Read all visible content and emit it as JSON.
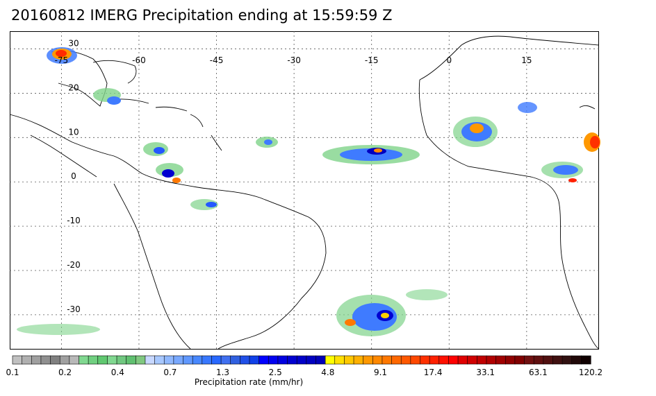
{
  "title": "20160812 IMERG Precipitation ending at 15:59:59 Z",
  "map": {
    "lon_labels": [
      "-75",
      "-60",
      "-45",
      "-30",
      "-15",
      "0",
      "15"
    ],
    "lon_values": [
      -75,
      -60,
      -45,
      -30,
      -15,
      0,
      15
    ],
    "lat_labels": [
      "30",
      "20",
      "10",
      "0",
      "-10",
      "-20",
      "-30"
    ],
    "lat_values": [
      30,
      20,
      10,
      0,
      -10,
      -20,
      -30
    ]
  },
  "colorbar": {
    "xlabel": "Precipitation rate (mm/hr)",
    "tick_labels": [
      "0.1",
      "0.2",
      "0.4",
      "0.7",
      "1.3",
      "2.5",
      "4.8",
      "9.1",
      "17.4",
      "33.1",
      "63.1",
      "120.2"
    ],
    "colors": [
      "#c0c0c0",
      "#b0b0b0",
      "#a0a0a0",
      "#909090",
      "#808080",
      "#a0a0a0",
      "#b8b8b8",
      "#80d890",
      "#70d080",
      "#60c870",
      "#80d890",
      "#70c880",
      "#60c070",
      "#80c880",
      "#c8d8ff",
      "#a8c8ff",
      "#90b8ff",
      "#78a8ff",
      "#6098ff",
      "#4888ff",
      "#3878ff",
      "#2868ff",
      "#4070f0",
      "#3060e0",
      "#2050e8",
      "#1040e8",
      "#0000ff",
      "#0000f0",
      "#0000e0",
      "#0000d0",
      "#0000c8",
      "#0000c0",
      "#0000b8",
      "#ffff00",
      "#ffe000",
      "#ffc800",
      "#ffb000",
      "#ff9800",
      "#ff8800",
      "#ff7800",
      "#ff6800",
      "#ff5800",
      "#ff4800",
      "#ff3000",
      "#ff2000",
      "#ff1000",
      "#ff0000",
      "#e00000",
      "#d00000",
      "#c00000",
      "#b00000",
      "#a00000",
      "#900000",
      "#800000",
      "#701010",
      "#601010",
      "#501010",
      "#401010",
      "#301010",
      "#200808",
      "#100000"
    ]
  }
}
